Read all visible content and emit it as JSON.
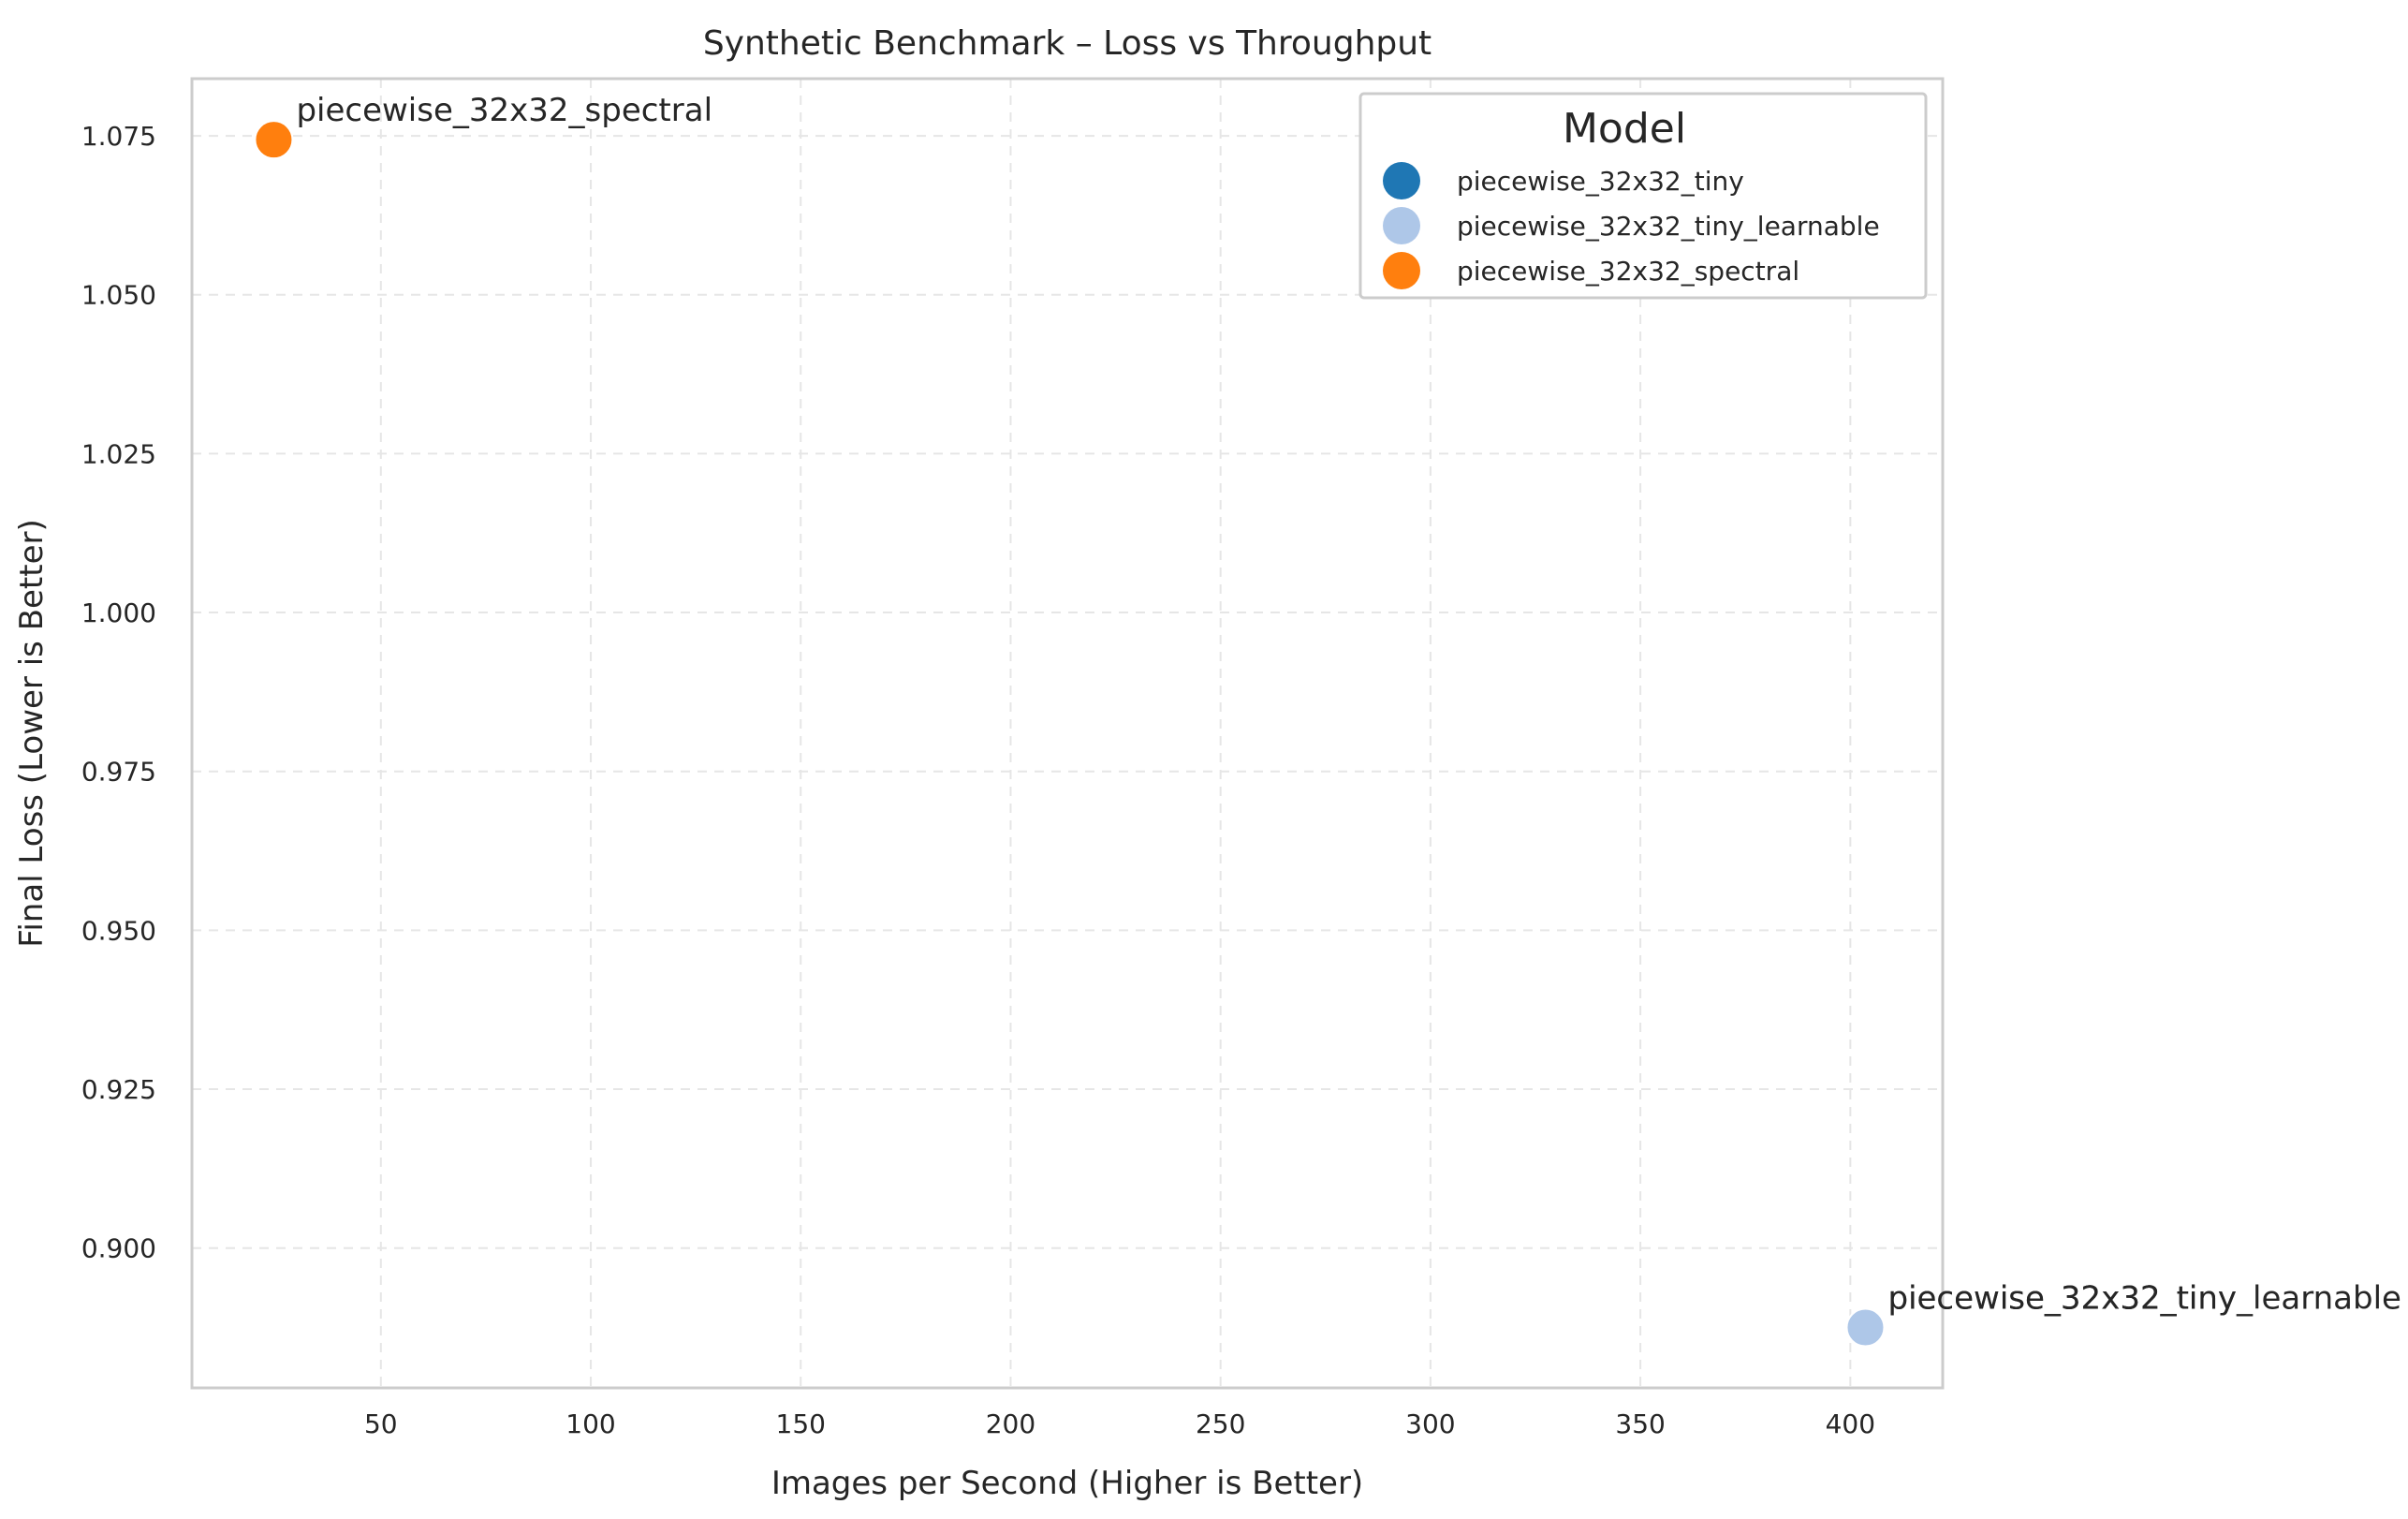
{
  "chart_data": {
    "type": "scatter",
    "title": "Synthetic Benchmark – Loss vs Throughput",
    "xlabel": "Images per Second (Higher is Better)",
    "ylabel": "Final Loss (Lower is Better)",
    "xlim": [
      5,
      422
    ],
    "ylim": [
      0.878,
      1.084
    ],
    "x_ticks": [
      50,
      100,
      150,
      200,
      250,
      300,
      350,
      400
    ],
    "x_tick_labels": [
      "50",
      "100",
      "150",
      "200",
      "250",
      "300",
      "350",
      "400"
    ],
    "y_ticks": [
      0.9,
      0.925,
      0.95,
      0.975,
      1.0,
      1.025,
      1.05,
      1.075
    ],
    "y_tick_labels": [
      "0.900",
      "0.925",
      "0.950",
      "0.975",
      "1.000",
      "1.025",
      "1.050",
      "1.075"
    ],
    "grid": true,
    "legend": {
      "title": "Model",
      "placement": "top-right"
    },
    "series": [
      {
        "name": "piecewise_32x32_tiny",
        "color": "#1f77b4",
        "points": [
          {
            "x": 403.6,
            "y": 0.8875
          }
        ],
        "annotation": "piecewise_32x32_tiny"
      },
      {
        "name": "piecewise_32x32_tiny_learnable",
        "color": "#aec7e8",
        "points": [
          {
            "x": 403.6,
            "y": 0.8875
          }
        ],
        "annotation": "piecewise_32x32_tiny_learnable"
      },
      {
        "name": "piecewise_32x32_spectral",
        "color": "#ff7f0e",
        "points": [
          {
            "x": 24.5,
            "y": 1.0744
          }
        ],
        "annotation": "piecewise_32x32_spectral"
      }
    ]
  }
}
